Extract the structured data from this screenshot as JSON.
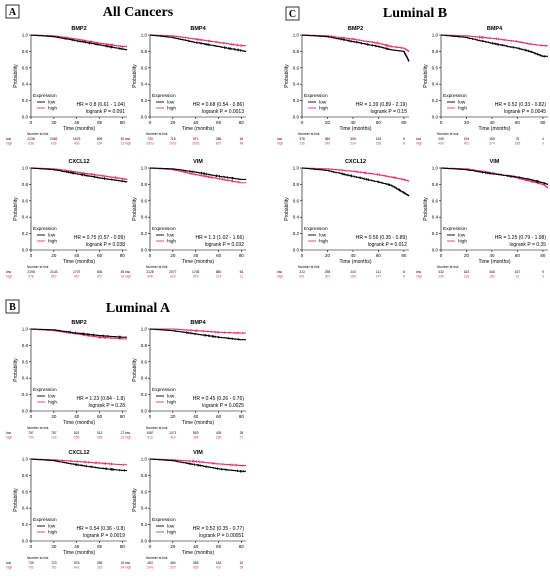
{
  "colors": {
    "low": "#000000",
    "high": "#e8356a"
  },
  "sections": [
    {
      "id": "A",
      "title": "All Cancers"
    },
    {
      "id": "B",
      "title": "Luminal A"
    },
    {
      "id": "C",
      "title": "Luminal B"
    }
  ],
  "common": {
    "x_label": "Time (months)",
    "y_label": "Probability",
    "x_ticks": [
      "0",
      "20",
      "40",
      "60",
      "80"
    ],
    "y_ticks": [
      "0.0",
      "0.2",
      "0.4",
      "0.6",
      "0.8",
      "1.0"
    ],
    "legend_title": "Expression",
    "legend_low": "low",
    "legend_high": "high",
    "risk_title": "Number at risk",
    "risk_low_label": "low",
    "risk_high_label": "high"
  },
  "chart_data": [
    {
      "type": "line",
      "section": "A",
      "title": "BMP2",
      "xlim": [
        0,
        84
      ],
      "ylim": [
        0,
        1
      ],
      "hr": "HR = 0.8 (0.61 - 1.04)",
      "logrank": "logrank P = 0.091",
      "risk_low": [
        "2138",
        "2082",
        "1679",
        "839",
        "51"
      ],
      "risk_high": [
        "638",
        "628",
        "495",
        "254",
        "13"
      ],
      "series": [
        {
          "name": "low",
          "x": [
            0,
            20,
            40,
            60,
            80,
            84
          ],
          "y": [
            1.0,
            0.98,
            0.93,
            0.88,
            0.83,
            0.82
          ]
        },
        {
          "name": "high",
          "x": [
            0,
            20,
            40,
            60,
            80,
            84
          ],
          "y": [
            1.0,
            0.99,
            0.95,
            0.9,
            0.86,
            0.86
          ]
        }
      ]
    },
    {
      "type": "line",
      "section": "A",
      "title": "BMP4",
      "xlim": [
        0,
        84
      ],
      "ylim": [
        0,
        1
      ],
      "hr": "HR = 0.68 (0.54 - 0.86)",
      "logrank": "logrank P = 0.0013",
      "risk_low": [
        "743",
        "718",
        "571",
        "286",
        "16"
      ],
      "risk_high": [
        "2033",
        "1992",
        "1603",
        "807",
        "48"
      ],
      "series": [
        {
          "name": "low",
          "x": [
            0,
            20,
            40,
            60,
            80,
            84
          ],
          "y": [
            1.0,
            0.97,
            0.91,
            0.86,
            0.81,
            0.8
          ]
        },
        {
          "name": "high",
          "x": [
            0,
            20,
            40,
            60,
            80,
            84
          ],
          "y": [
            1.0,
            0.99,
            0.95,
            0.91,
            0.87,
            0.87
          ]
        }
      ]
    },
    {
      "type": "line",
      "section": "A",
      "title": "CXCL12",
      "xlim": [
        0,
        84
      ],
      "ylim": [
        0,
        1
      ],
      "hr": "HR = 0.75 (0.57 - 0.99)",
      "logrank": "logrank P = 0.038",
      "risk_low": [
        "2198",
        "2143",
        "1707",
        "836",
        "45"
      ],
      "risk_high": [
        "578",
        "567",
        "467",
        "257",
        "19"
      ],
      "series": [
        {
          "name": "low",
          "x": [
            0,
            20,
            40,
            60,
            80,
            84
          ],
          "y": [
            1.0,
            0.98,
            0.93,
            0.88,
            0.84,
            0.83
          ]
        },
        {
          "name": "high",
          "x": [
            0,
            20,
            40,
            60,
            80,
            84
          ],
          "y": [
            1.0,
            0.99,
            0.95,
            0.91,
            0.87,
            0.86
          ]
        }
      ]
    },
    {
      "type": "line",
      "section": "A",
      "title": "VIM",
      "xlim": [
        0,
        84
      ],
      "ylim": [
        0,
        1
      ],
      "hr": "HR = 1.3 (1.02 - 1.66)",
      "logrank": "logrank P = 0.032",
      "risk_low": [
        "2128",
        "2077",
        "1745",
        "880",
        "54"
      ],
      "risk_high": [
        "648",
        "633",
        "478",
        "213",
        "11"
      ],
      "series": [
        {
          "name": "low",
          "x": [
            0,
            20,
            40,
            60,
            80,
            84
          ],
          "y": [
            1.0,
            0.99,
            0.95,
            0.9,
            0.86,
            0.86
          ]
        },
        {
          "name": "high",
          "x": [
            0,
            20,
            40,
            60,
            80,
            84
          ],
          "y": [
            1.0,
            0.98,
            0.92,
            0.87,
            0.82,
            0.82
          ]
        }
      ]
    },
    {
      "type": "line",
      "section": "C",
      "title": "BMP2",
      "xlim": [
        0,
        84
      ],
      "ylim": [
        0,
        1
      ],
      "hr": "HR = 1.39 (0.89 - 2.19)",
      "logrank": "logrank P = 0.15",
      "risk_low": [
        "378",
        "380",
        "305",
        "153",
        "5"
      ],
      "risk_high": [
        "236",
        "249",
        "224",
        "158",
        "8"
      ],
      "series": [
        {
          "name": "low",
          "x": [
            0,
            20,
            40,
            60,
            70,
            80,
            84
          ],
          "y": [
            1.0,
            0.98,
            0.92,
            0.86,
            0.82,
            0.8,
            0.68
          ]
        },
        {
          "name": "high",
          "x": [
            0,
            20,
            40,
            60,
            70,
            80,
            84
          ],
          "y": [
            1.0,
            0.99,
            0.95,
            0.9,
            0.86,
            0.84,
            0.8
          ]
        }
      ]
    },
    {
      "type": "line",
      "section": "C",
      "title": "BMP4",
      "xlim": [
        0,
        84
      ],
      "ylim": [
        0,
        1
      ],
      "hr": "HR = 0.52 (0.33 - 0.82)",
      "logrank": "logrank P = 0.0045",
      "risk_low": [
        "205",
        "194",
        "155",
        "75",
        "4"
      ],
      "risk_high": [
        "409",
        "401",
        "374",
        "185",
        "9"
      ],
      "series": [
        {
          "name": "low",
          "x": [
            0,
            20,
            40,
            60,
            70,
            80,
            84
          ],
          "y": [
            1.0,
            0.97,
            0.9,
            0.84,
            0.8,
            0.74,
            0.74
          ]
        },
        {
          "name": "high",
          "x": [
            0,
            20,
            40,
            60,
            70,
            80,
            84
          ],
          "y": [
            1.0,
            0.99,
            0.96,
            0.92,
            0.89,
            0.87,
            0.87
          ]
        }
      ]
    },
    {
      "type": "line",
      "section": "C",
      "title": "CXCL12",
      "xlim": [
        0,
        84
      ],
      "ylim": [
        0,
        1
      ],
      "hr": "HR = 0.56 (0.35 - 0.89)",
      "logrank": "logrank P = 0.012",
      "risk_low": [
        "313",
        "298",
        "243",
        "111",
        "6"
      ],
      "risk_high": [
        "301",
        "301",
        "268",
        "147",
        "6"
      ],
      "series": [
        {
          "name": "low",
          "x": [
            0,
            20,
            40,
            60,
            70,
            80,
            84
          ],
          "y": [
            1.0,
            0.97,
            0.9,
            0.83,
            0.79,
            0.7,
            0.66
          ]
        },
        {
          "name": "high",
          "x": [
            0,
            20,
            40,
            60,
            70,
            80,
            84
          ],
          "y": [
            1.0,
            0.99,
            0.96,
            0.92,
            0.89,
            0.86,
            0.84
          ]
        }
      ]
    },
    {
      "type": "line",
      "section": "C",
      "title": "VIM",
      "xlim": [
        0,
        84
      ],
      "ylim": [
        0,
        1
      ],
      "hr": "HR = 1.25 (0.79 - 1.98)",
      "logrank": "logrank P = 0.35",
      "risk_low": [
        "432",
        "423",
        "346",
        "167",
        "9"
      ],
      "risk_high": [
        "235",
        "228",
        "183",
        "81",
        "5"
      ],
      "series": [
        {
          "name": "low",
          "x": [
            0,
            20,
            40,
            60,
            70,
            80,
            84
          ],
          "y": [
            1.0,
            0.98,
            0.93,
            0.89,
            0.86,
            0.82,
            0.8
          ]
        },
        {
          "name": "high",
          "x": [
            0,
            20,
            40,
            60,
            70,
            80,
            84
          ],
          "y": [
            1.0,
            0.99,
            0.94,
            0.88,
            0.84,
            0.8,
            0.76
          ]
        }
      ]
    },
    {
      "type": "line",
      "section": "B",
      "title": "BMP2",
      "xlim": [
        0,
        84
      ],
      "ylim": [
        0,
        1
      ],
      "hr": "HR = 1.23 (0.84 - 1.8)",
      "logrank": "logrank P = 0.28",
      "risk_low": [
        "767",
        "757",
        "621",
        "313",
        "27"
      ],
      "risk_high": [
        "733",
        "728",
        "596",
        "298",
        "22"
      ],
      "series": [
        {
          "name": "low",
          "x": [
            0,
            20,
            40,
            60,
            80,
            84
          ],
          "y": [
            1.0,
            0.99,
            0.95,
            0.92,
            0.9,
            0.9
          ]
        },
        {
          "name": "high",
          "x": [
            0,
            20,
            40,
            60,
            80,
            84
          ],
          "y": [
            1.0,
            0.98,
            0.94,
            0.9,
            0.88,
            0.88
          ]
        }
      ]
    },
    {
      "type": "line",
      "section": "B",
      "title": "BMP4",
      "xlim": [
        0,
        84
      ],
      "ylim": [
        0,
        1
      ],
      "hr": "HR = 0.45 (0.26 - 0.76)",
      "logrank": "logrank P = 0.0025",
      "risk_low": [
        "1087",
        "1071",
        "853",
        "426",
        "28"
      ],
      "risk_high": [
        "413",
        "414",
        "364",
        "185",
        "21"
      ],
      "series": [
        {
          "name": "low",
          "x": [
            0,
            20,
            40,
            60,
            80,
            84
          ],
          "y": [
            1.0,
            0.98,
            0.94,
            0.9,
            0.87,
            0.87
          ]
        },
        {
          "name": "high",
          "x": [
            0,
            20,
            40,
            60,
            80,
            84
          ],
          "y": [
            1.0,
            1.0,
            0.98,
            0.96,
            0.95,
            0.95
          ]
        }
      ]
    },
    {
      "type": "line",
      "section": "B",
      "title": "CXCL12",
      "xlim": [
        0,
        84
      ],
      "ylim": [
        0,
        1
      ],
      "hr": "HR = 0.54 (0.36 - 0.8)",
      "logrank": "logrank P = 0.0019",
      "risk_low": [
        "735",
        "723",
        "576",
        "286",
        "15"
      ],
      "risk_high": [
        "765",
        "762",
        "641",
        "325",
        "34"
      ],
      "series": [
        {
          "name": "low",
          "x": [
            0,
            20,
            40,
            60,
            80,
            84
          ],
          "y": [
            1.0,
            0.98,
            0.93,
            0.89,
            0.86,
            0.86
          ]
        },
        {
          "name": "high",
          "x": [
            0,
            20,
            40,
            60,
            80,
            84
          ],
          "y": [
            1.0,
            0.99,
            0.97,
            0.95,
            0.93,
            0.93
          ]
        }
      ]
    },
    {
      "type": "line",
      "section": "B",
      "title": "VIM",
      "xlim": [
        0,
        84
      ],
      "ylim": [
        0,
        1
      ],
      "hr": "HR = 0.52 (0.35 - 0.77)",
      "logrank": "logrank P = 0.00051",
      "risk_low": [
        "463",
        "454",
        "355",
        "182",
        "10"
      ],
      "risk_high": [
        "1041",
        "1027",
        "835",
        "437",
        "39"
      ],
      "series": [
        {
          "name": "low",
          "x": [
            0,
            20,
            40,
            60,
            80,
            84
          ],
          "y": [
            1.0,
            0.98,
            0.93,
            0.88,
            0.85,
            0.85
          ]
        },
        {
          "name": "high",
          "x": [
            0,
            20,
            40,
            60,
            80,
            84
          ],
          "y": [
            1.0,
            0.99,
            0.97,
            0.94,
            0.92,
            0.92
          ]
        }
      ]
    }
  ]
}
